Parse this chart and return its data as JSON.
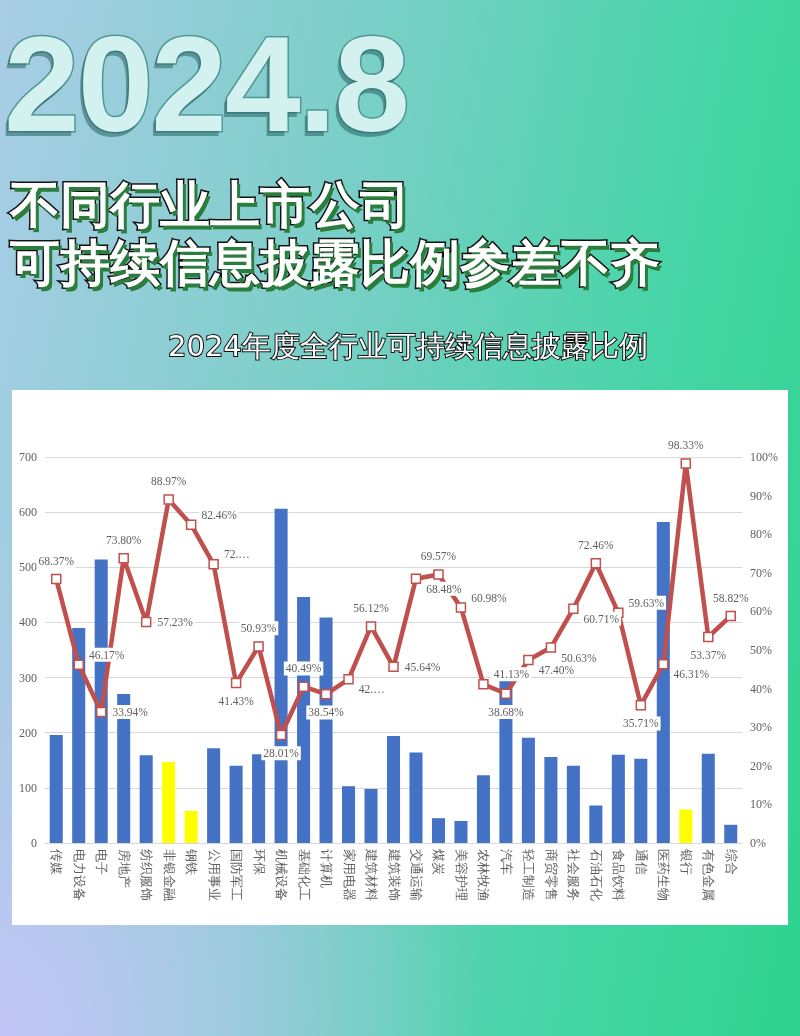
{
  "chart_data": {
    "type": "bar",
    "title": "不同行业上市公司可持续信息披露比例参差不齐",
    "subtitle": "2024年度全行业可持续信息披露比例",
    "annotations": [
      "2024.8"
    ],
    "categories": [
      "传媒",
      "电力设备",
      "电子",
      "房地产",
      "纺织服饰",
      "非银金融",
      "钢铁",
      "公用事业",
      "国防军工",
      "环保",
      "机械设备",
      "基础化工",
      "计算机",
      "家用电器",
      "建筑材料",
      "建筑装饰",
      "交通运输",
      "煤炭",
      "美容护理",
      "农林牧渔",
      "汽车",
      "轻工制造",
      "商贸零售",
      "社会服务",
      "石油石化",
      "食品饮料",
      "通信",
      "医药生物",
      "银行",
      "有色金属",
      "综合"
    ],
    "series": [
      {
        "colors": [
          "#4472c4",
          "#4472c4",
          "#4472c4",
          "#4472c4",
          "#4472c4",
          "#ffff00",
          "#ffff00",
          "#4472c4",
          "#4472c4",
          "#4472c4",
          "#4472c4",
          "#4472c4",
          "#4472c4",
          "#4472c4",
          "#4472c4",
          "#4472c4",
          "#4472c4",
          "#4472c4",
          "#4472c4",
          "#4472c4",
          "#4472c4",
          "#4472c4",
          "#4472c4",
          "#4472c4",
          "#4472c4",
          "#4472c4",
          "#4472c4",
          "#4472c4",
          "#ffff00",
          "#4472c4",
          "#4472c4"
        ],
        "values": [
          196,
          390,
          514,
          270,
          159,
          147,
          58,
          172,
          140,
          161,
          606,
          446,
          409,
          103,
          98,
          194,
          164,
          45,
          40,
          123,
          318,
          191,
          156,
          140,
          68,
          160,
          153,
          582,
          61,
          162,
          33
        ]
      },
      {
        "type": "line",
        "axis": "y2",
        "color": "#c0504d",
        "values": [
          68.37,
          46.17,
          33.94,
          73.8,
          57.23,
          88.97,
          82.46,
          72.2,
          41.43,
          50.93,
          28.01,
          40.49,
          38.54,
          42.4,
          56.12,
          45.64,
          68.48,
          69.57,
          60.98,
          41.13,
          38.68,
          47.4,
          50.63,
          60.71,
          72.46,
          59.63,
          35.71,
          46.31,
          98.33,
          53.37,
          58.82
        ],
        "value_labels": [
          "68.37%",
          "46.17%",
          "33.94%",
          "73.80%",
          "57.23%",
          "88.97%",
          "82.46%",
          "72.…",
          "41.43%",
          "50.93%",
          "28.01%",
          "40.49%",
          "38.54%",
          "42.…",
          "56.12%",
          "45.64%",
          "68.48%",
          "69.57%",
          "60.98%",
          "41.13%",
          "38.68%",
          "47.40%",
          "50.63%",
          "60.71%",
          "72.46%",
          "59.63%",
          "35.71%",
          "46.31%",
          "98.33%",
          "53.37%",
          "58.82%"
        ]
      }
    ],
    "ylim": [
      0,
      700
    ],
    "yticks": [
      0,
      100,
      200,
      300,
      400,
      500,
      600,
      700
    ],
    "y2lim": [
      0,
      100
    ],
    "y2ticks": [
      {
        "value": 0,
        "label": "0%"
      },
      {
        "value": 10,
        "label": "10%"
      },
      {
        "value": 20,
        "label": "20%"
      },
      {
        "value": 30,
        "label": "30%"
      },
      {
        "value": 40,
        "label": "40%"
      },
      {
        "value": 50,
        "label": "50%"
      },
      {
        "value": 60,
        "label": "60%"
      },
      {
        "value": 70,
        "label": "70%"
      },
      {
        "value": 80,
        "label": "80%"
      },
      {
        "value": 90,
        "label": "90%"
      },
      {
        "value": 100,
        "label": "100%"
      }
    ],
    "grid": "y",
    "marker": "square"
  }
}
